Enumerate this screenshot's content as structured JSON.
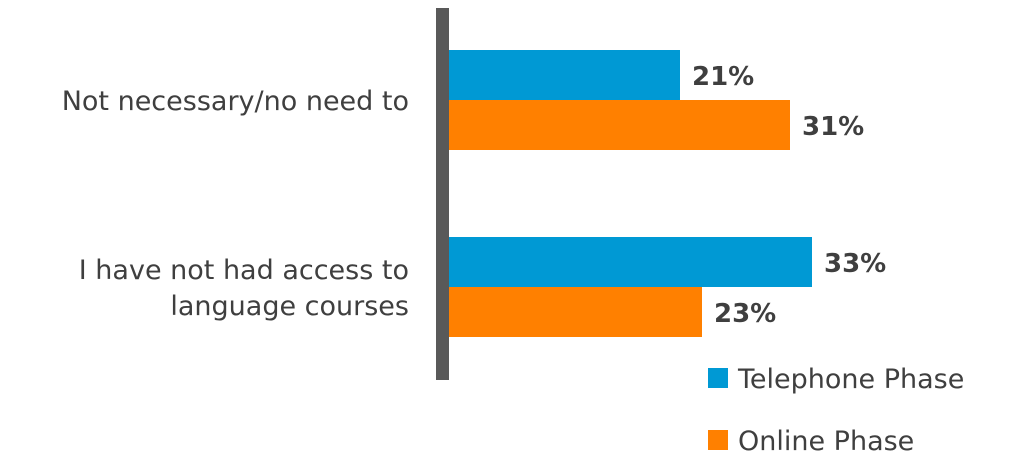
{
  "chart_data": {
    "type": "bar",
    "orientation": "horizontal",
    "categories": [
      [
        "Not necessary/no need to"
      ],
      [
        "I have not had access to",
        "language courses"
      ]
    ],
    "series": [
      {
        "name": "Telephone Phase",
        "color": "#0099d4",
        "values": [
          21,
          33
        ],
        "labels": [
          "21%",
          "33%"
        ]
      },
      {
        "name": "Online Phase",
        "color": "#ff8000",
        "values": [
          31,
          23
        ],
        "labels": [
          "31%",
          "23%"
        ]
      }
    ],
    "value_unit": "%",
    "xlim": [
      0,
      40
    ],
    "grid": false,
    "legend_position": "bottom-right",
    "axis_color": "#595959"
  }
}
